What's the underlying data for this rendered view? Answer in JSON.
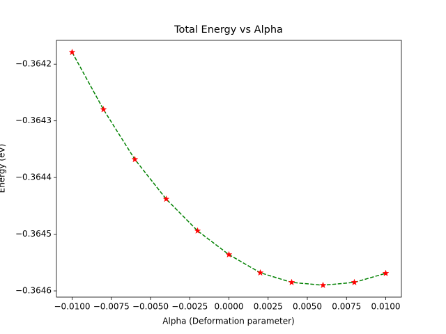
{
  "chart_data": {
    "type": "line",
    "title": "Total Energy vs Alpha",
    "xlabel": "Alpha (Deformation parameter)",
    "ylabel": "Energy (eV)",
    "x": [
      -0.01,
      -0.008,
      -0.006,
      -0.004,
      -0.002,
      0.0,
      0.002,
      0.004,
      0.006,
      0.008,
      0.01
    ],
    "series": [
      {
        "line_color": "#008000",
        "marker_color": "#ff0000",
        "linestyle": "dashed",
        "marker": "star",
        "values": [
          -0.364179,
          -0.36428,
          -0.364368,
          -0.364438,
          -0.364494,
          -0.364536,
          -0.364568,
          -0.364585,
          -0.36459,
          -0.364585,
          -0.364569
        ]
      }
    ],
    "xlim": [
      -0.011,
      0.011
    ],
    "ylim": [
      -0.364611,
      -0.364158
    ],
    "xticks": [
      {
        "value": -0.01,
        "label": "−0.0100"
      },
      {
        "value": -0.0075,
        "label": "−0.0075"
      },
      {
        "value": -0.005,
        "label": "−0.0050"
      },
      {
        "value": -0.0025,
        "label": "−0.0025"
      },
      {
        "value": 0,
        "label": "0.0000"
      },
      {
        "value": 0.0025,
        "label": "0.0025"
      },
      {
        "value": 0.005,
        "label": "0.0050"
      },
      {
        "value": 0.0075,
        "label": "0.0075"
      },
      {
        "value": 0.01,
        "label": "0.0100"
      }
    ],
    "yticks": [
      {
        "value": -0.3642,
        "label": "−0.3642"
      },
      {
        "value": -0.3643,
        "label": "−0.3643"
      },
      {
        "value": -0.3644,
        "label": "−0.3644"
      },
      {
        "value": -0.3645,
        "label": "−0.3645"
      },
      {
        "value": -0.3646,
        "label": "−0.3646"
      }
    ],
    "grid": false
  }
}
